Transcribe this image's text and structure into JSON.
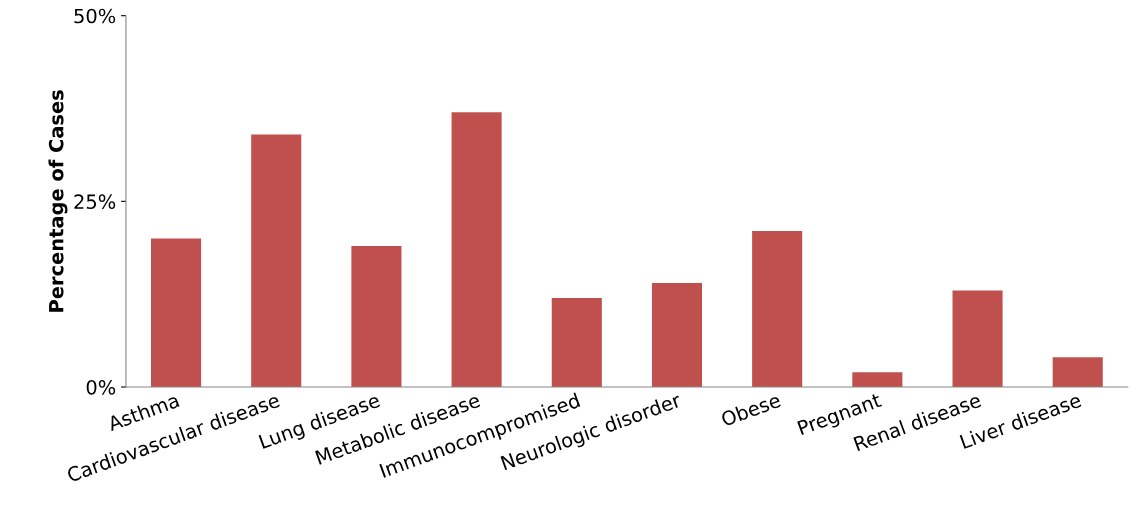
{
  "chart_data": {
    "type": "bar",
    "ylabel": "Percentage of Cases",
    "categories": [
      "Asthma",
      "Cardiovascular disease",
      "Lung disease",
      "Metabolic disease",
      "Immunocompromised",
      "Neurologic disorder",
      "Obese",
      "Pregnant",
      "Renal disease",
      "Liver disease"
    ],
    "values": [
      20,
      34,
      19,
      37,
      12,
      14,
      21,
      2,
      13,
      4
    ],
    "color": "#c0504d",
    "ylim": [
      0,
      50
    ],
    "yticks": [
      {
        "value": 0,
        "label": "0%"
      },
      {
        "value": 25,
        "label": "25%"
      },
      {
        "value": 50,
        "label": "50%"
      }
    ],
    "grid": false
  }
}
